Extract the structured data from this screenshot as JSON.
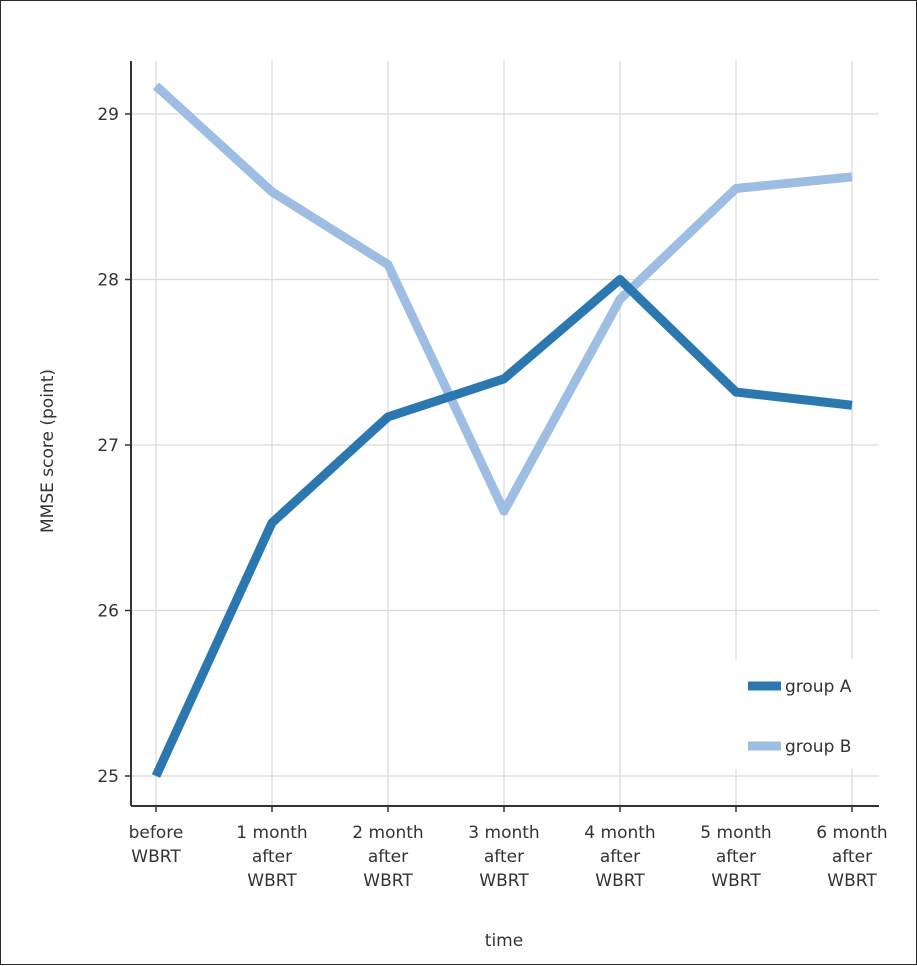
{
  "chart_data": {
    "type": "line",
    "title": "",
    "xlabel": "time",
    "ylabel": "MMSE score (point)",
    "categories": [
      [
        "before",
        "WBRT"
      ],
      [
        "1 month",
        "after",
        "WBRT"
      ],
      [
        "2 month",
        "after",
        "WBRT"
      ],
      [
        "3 month",
        "after",
        "WBRT"
      ],
      [
        "4 month",
        "after",
        "WBRT"
      ],
      [
        "5 month",
        "after",
        "WBRT"
      ],
      [
        "6 month",
        "after",
        "WBRT"
      ]
    ],
    "ylim": [
      24.9,
      29.35
    ],
    "yticks": [
      25,
      26,
      27,
      28,
      29
    ],
    "grid": true,
    "legend_position": "bottom-right",
    "series": [
      {
        "name": "group A",
        "color": "#2b78b0",
        "values": [
          25.0,
          26.53,
          27.17,
          27.4,
          28.0,
          27.32,
          27.24
        ]
      },
      {
        "name": "group B",
        "color": "#9dbde2",
        "values": [
          29.17,
          28.53,
          28.09,
          26.6,
          27.88,
          28.55,
          28.62
        ]
      }
    ]
  }
}
